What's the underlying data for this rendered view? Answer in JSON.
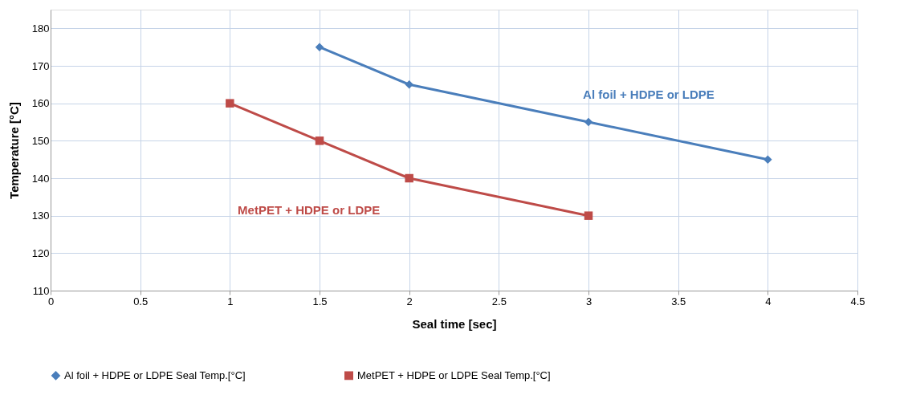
{
  "chart_data": {
    "type": "line",
    "xlabel": "Seal time [sec]",
    "ylabel": "Temperature [°C]",
    "xlim": [
      0,
      4.5
    ],
    "xticks": [
      0,
      0.5,
      1,
      1.5,
      2,
      2.5,
      3,
      3.5,
      4,
      4.5
    ],
    "ylim": [
      110,
      185
    ],
    "yticks": [
      110,
      120,
      130,
      140,
      150,
      160,
      170,
      180
    ],
    "grid": true,
    "legend": "bottom",
    "line_style": "solid",
    "series": [
      {
        "name": "Al foil + HDPE or LDPE Seal Temp.[°C]",
        "color": "#4a7ebb",
        "marker": "diamond",
        "x": [
          1.5,
          2,
          3,
          4
        ],
        "values": [
          175,
          165,
          155,
          145
        ]
      },
      {
        "name": "MetPET + HDPE or LDPE Seal Temp.[°C]",
        "color": "#be4b48",
        "marker": "square",
        "x": [
          1,
          1.5,
          2,
          3
        ],
        "values": [
          160,
          150,
          140,
          130
        ]
      }
    ],
    "annotations": [
      "Al foil + HDPE or LDPE",
      "MetPET + HDPE or LDPE"
    ]
  }
}
